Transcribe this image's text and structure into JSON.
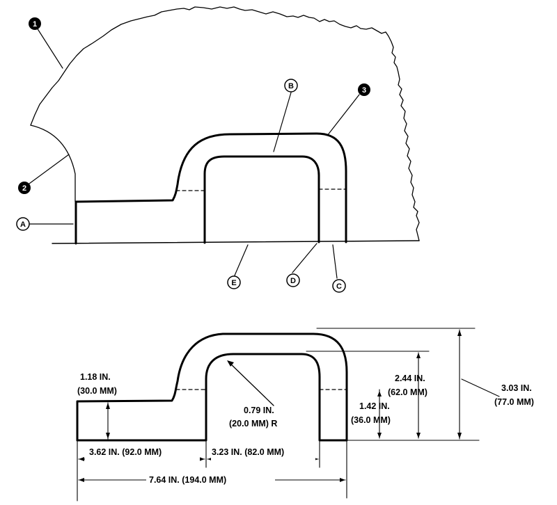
{
  "top_view": {
    "numbered_callouts": [
      "1",
      "2",
      "3"
    ],
    "letter_callouts": [
      "A",
      "B",
      "C",
      "D",
      "E"
    ]
  },
  "dimensions": {
    "step_height_in": "1.18 IN.",
    "step_height_mm": "(30.0 MM)",
    "radius_in": "0.79 IN.",
    "radius_mm": "(20.0 MM) R",
    "left_width": "3.62 IN. (92.0 MM)",
    "opening_width": "3.23 IN. (82.0 MM)",
    "total_width": "7.64 IN. (194.0 MM)",
    "inner_height_in": "1.42 IN.",
    "inner_height_mm": "(36.0 MM)",
    "mid_height_in": "2.44 IN.",
    "mid_height_mm": "(62.0 MM)",
    "total_height_in": "3.03 IN.",
    "total_height_mm": "(77.0 MM)"
  }
}
